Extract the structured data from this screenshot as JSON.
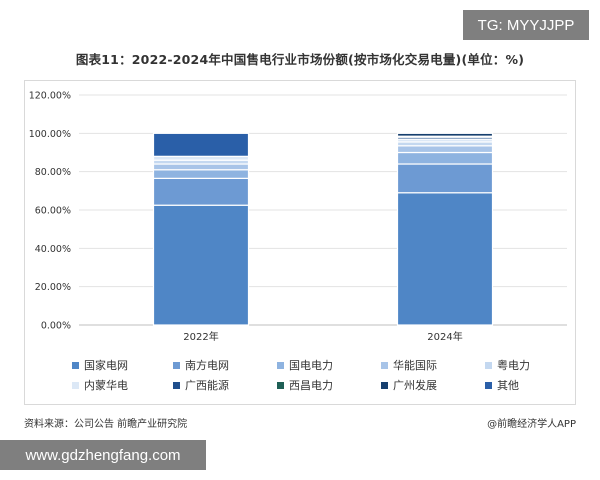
{
  "tag_text": "TG: MYYJJPP",
  "footer": {
    "source": "资料来源：公司公告 前瞻产业研究院",
    "brand": "@前瞻经济学人APP"
  },
  "site_text": "www.gdzhengfang.com",
  "chart_data": {
    "type": "bar",
    "stacked": true,
    "title": "图表11：2022-2024年中国售电行业市场份额(按市场化交易电量)(单位：%)",
    "xlabel": "",
    "ylabel": "",
    "ylim": [
      0,
      120
    ],
    "yticks": [
      "0.00%",
      "20.00%",
      "40.00%",
      "60.00%",
      "80.00%",
      "100.00%",
      "120.00%"
    ],
    "grid": true,
    "legend_position": "bottom",
    "categories": [
      "2022年",
      "2024年"
    ],
    "series": [
      {
        "name": "国家电网",
        "color": "#4f86c6",
        "values": [
          62.5,
          69.0
        ]
      },
      {
        "name": "南方电网",
        "color": "#6d9ad3",
        "values": [
          14.0,
          15.0
        ]
      },
      {
        "name": "国电电力",
        "color": "#8eb3e0",
        "values": [
          4.5,
          6.0
        ]
      },
      {
        "name": "华能国际",
        "color": "#a8c4e8",
        "values": [
          3.0,
          3.5
        ]
      },
      {
        "name": "粤电力",
        "color": "#c4d8f0",
        "values": [
          2.0,
          2.0
        ]
      },
      {
        "name": "内蒙华电",
        "color": "#dce8f6",
        "values": [
          2.0,
          1.5
        ]
      },
      {
        "name": "广西能源",
        "color": "#1f4e8c",
        "values": [
          0.0,
          1.0
        ]
      },
      {
        "name": "西昌电力",
        "color": "#1e5f55",
        "values": [
          0.0,
          0.5
        ]
      },
      {
        "name": "广州发展",
        "color": "#163f6e",
        "values": [
          0.0,
          1.5
        ]
      },
      {
        "name": "其他",
        "color": "#2a5fa8",
        "values": [
          12.0,
          0.0
        ]
      }
    ]
  }
}
